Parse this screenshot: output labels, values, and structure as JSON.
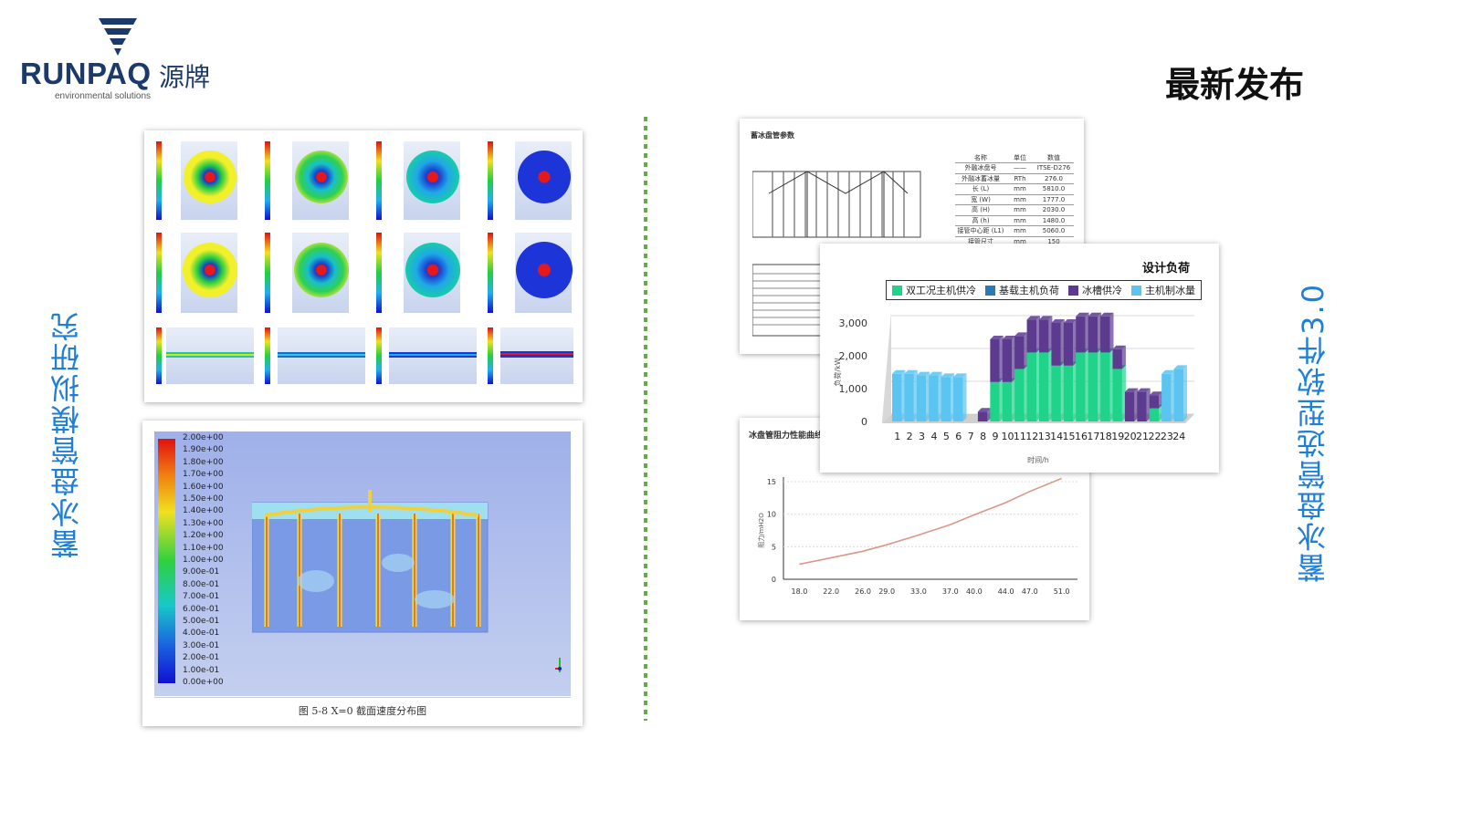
{
  "logo": {
    "brand": "RUNPAQ",
    "cn": "源牌",
    "sub": "environmental solutions"
  },
  "header": {
    "title": "最新发布"
  },
  "left_label": "蓄冰盘管模拟研究",
  "right_label": "蓄冰盘管选型软件3.0",
  "sim_card": {
    "colorbar": [
      "2.00e+00",
      "1.90e+00",
      "1.80e+00",
      "1.70e+00",
      "1.60e+00",
      "1.50e+00",
      "1.40e+00",
      "1.30e+00",
      "1.20e+00",
      "1.10e+00",
      "1.00e+00",
      "9.00e-01",
      "8.00e-01",
      "7.00e-01",
      "6.00e-01",
      "5.00e-01",
      "4.00e-01",
      "3.00e-01",
      "2.00e-01",
      "1.00e-01",
      "0.00e+00"
    ],
    "caption": "图 5-8 X=0 截面速度分布图"
  },
  "params_card": {
    "title": "蓄冰盘管参数",
    "headers": [
      "名称",
      "单位",
      "数值"
    ],
    "rows": [
      [
        "外融冰盘号",
        "——",
        "ITSE-D276"
      ],
      [
        "外融冰蓄冰量",
        "RTh",
        "276.0"
      ],
      [
        "长 (L)",
        "mm",
        "5810.0"
      ],
      [
        "宽 (W)",
        "mm",
        "1777.0"
      ],
      [
        "高 (H)",
        "mm",
        "2030.0"
      ],
      [
        "高 (h)",
        "mm",
        "1480.0"
      ],
      [
        "接管中心距 (L1)",
        "mm",
        "5060.0"
      ],
      [
        "接管尺寸",
        "mm",
        "150"
      ]
    ]
  },
  "load_card": {
    "title": "设计负荷",
    "xlabel": "时间/h",
    "ylabel": "负荷/kW"
  },
  "resist_card": {
    "title": "冰盘管阻力性能曲线",
    "ylabel": "阻力/mH2O"
  },
  "chart_data": [
    {
      "type": "bar",
      "title": "设计负荷",
      "xlabel": "时间/h",
      "ylabel": "负荷/kW",
      "ylim": [
        0,
        3000
      ],
      "yticks": [
        "0",
        "1,000",
        "2,000",
        "3,000"
      ],
      "categories": [
        "1",
        "2",
        "3",
        "4",
        "5",
        "6",
        "7",
        "8",
        "9",
        "10",
        "11",
        "12",
        "13",
        "14",
        "15",
        "16",
        "17",
        "18",
        "19",
        "20",
        "21",
        "22",
        "23",
        "24"
      ],
      "legend_position": "top",
      "series": [
        {
          "name": "双工况主机供冷",
          "color": "#1fd38a",
          "values": [
            0,
            0,
            0,
            0,
            0,
            0,
            0,
            0,
            1200,
            1200,
            1600,
            2100,
            2100,
            1700,
            1700,
            2100,
            2100,
            2100,
            1600,
            0,
            0,
            400,
            0,
            0
          ]
        },
        {
          "name": "基载主机负荷",
          "color": "#2a7ab8",
          "values": [
            0,
            0,
            0,
            0,
            0,
            0,
            0,
            0,
            0,
            0,
            0,
            0,
            0,
            0,
            0,
            0,
            0,
            0,
            0,
            0,
            0,
            0,
            0,
            0
          ]
        },
        {
          "name": "冰槽供冷",
          "color": "#5b3a8f",
          "values": [
            0,
            0,
            0,
            0,
            0,
            0,
            0,
            300,
            1300,
            1300,
            1000,
            1000,
            1000,
            1300,
            1300,
            1100,
            1100,
            1100,
            600,
            900,
            900,
            400,
            0,
            0
          ]
        },
        {
          "name": "主机制冰量",
          "color": "#5bc4f0",
          "values": [
            1450,
            1450,
            1400,
            1400,
            1350,
            1350,
            0,
            0,
            0,
            0,
            0,
            0,
            0,
            0,
            0,
            0,
            0,
            0,
            0,
            0,
            0,
            0,
            1450,
            1600
          ]
        }
      ]
    },
    {
      "type": "line",
      "title": "冰盘管阻力性能曲线",
      "ylabel": "阻力/mH2O",
      "ylim": [
        0,
        15
      ],
      "yticks": [
        "0",
        "5",
        "10",
        "15"
      ],
      "xticks": [
        "18.0",
        "22.0",
        "26.0",
        "29.0",
        "33.0",
        "37.0",
        "40.0",
        "44.0",
        "47.0",
        "51.0"
      ],
      "series": [
        {
          "color": "#d9988a",
          "x": [
            18,
            22,
            26,
            29,
            33,
            37,
            40,
            44,
            47,
            51
          ],
          "values": [
            2.3,
            3.3,
            4.3,
            5.3,
            6.8,
            8.4,
            9.9,
            11.8,
            13.5,
            15.5
          ]
        }
      ]
    }
  ]
}
